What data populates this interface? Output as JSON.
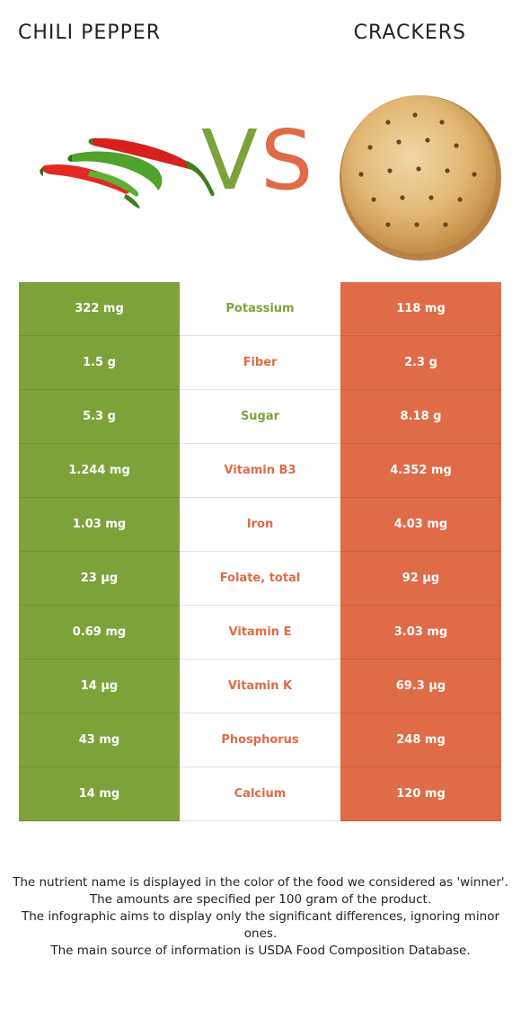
{
  "header": {
    "left_title": "CHILI PEPPER",
    "right_title": "CRACKERS"
  },
  "vs": {
    "v": "V",
    "s": "S"
  },
  "colors": {
    "left_food": "#7ea23a",
    "right_food": "#e06b47"
  },
  "icons": {
    "left_image": "chili-pepper-icon",
    "right_image": "cracker-icon"
  },
  "rows": [
    {
      "left": "322 mg",
      "nutrient": "Potassium",
      "right": "118 mg",
      "winner": "left"
    },
    {
      "left": "1.5 g",
      "nutrient": "Fiber",
      "right": "2.3 g",
      "winner": "right"
    },
    {
      "left": "5.3 g",
      "nutrient": "Sugar",
      "right": "8.18 g",
      "winner": "left"
    },
    {
      "left": "1.244 mg",
      "nutrient": "Vitamin B3",
      "right": "4.352 mg",
      "winner": "right"
    },
    {
      "left": "1.03 mg",
      "nutrient": "Iron",
      "right": "4.03 mg",
      "winner": "right"
    },
    {
      "left": "23 µg",
      "nutrient": "Folate, total",
      "right": "92 µg",
      "winner": "right"
    },
    {
      "left": "0.69 mg",
      "nutrient": "Vitamin E",
      "right": "3.03 mg",
      "winner": "right"
    },
    {
      "left": "14 µg",
      "nutrient": "Vitamin K",
      "right": "69.3 µg",
      "winner": "right"
    },
    {
      "left": "43 mg",
      "nutrient": "Phosphorus",
      "right": "248 mg",
      "winner": "right"
    },
    {
      "left": "14 mg",
      "nutrient": "Calcium",
      "right": "120 mg",
      "winner": "right"
    }
  ],
  "footnote": {
    "line1": "The nutrient name is displayed in the color of the food we considered as 'winner'.",
    "line2": "The amounts are specified per 100 gram of the product.",
    "line3": "The infographic aims to display only the significant differences, ignoring minor ones.",
    "line4": "The main source of information is USDA Food Composition Database."
  }
}
